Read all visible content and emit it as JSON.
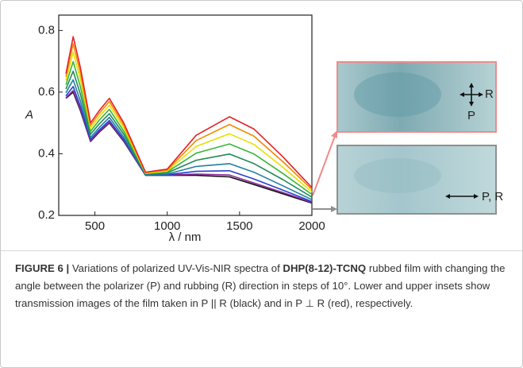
{
  "chart_data": {
    "type": "line",
    "xlabel": "λ / nm",
    "ylabel": "A",
    "x": [
      300,
      350,
      400,
      470,
      530,
      600,
      700,
      850,
      1000,
      1200,
      1430,
      1600,
      1800,
      2000
    ],
    "series": [
      {
        "color": "#111111",
        "values": [
          0.58,
          0.6,
          0.54,
          0.44,
          0.47,
          0.5,
          0.44,
          0.33,
          0.33,
          0.33,
          0.325,
          0.3,
          0.27,
          0.24
        ]
      },
      {
        "color": "#8b2c9a",
        "values": [
          0.582,
          0.605,
          0.544,
          0.442,
          0.472,
          0.502,
          0.442,
          0.33,
          0.331,
          0.334,
          0.331,
          0.305,
          0.274,
          0.242
        ]
      },
      {
        "color": "#2a3fd0",
        "values": [
          0.588,
          0.618,
          0.554,
          0.446,
          0.477,
          0.508,
          0.446,
          0.331,
          0.332,
          0.343,
          0.345,
          0.318,
          0.282,
          0.245
        ]
      },
      {
        "color": "#1f7fa0",
        "values": [
          0.598,
          0.64,
          0.571,
          0.453,
          0.485,
          0.518,
          0.453,
          0.332,
          0.334,
          0.359,
          0.368,
          0.34,
          0.296,
          0.251
        ]
      },
      {
        "color": "#1f8a5a",
        "values": [
          0.61,
          0.668,
          0.593,
          0.463,
          0.497,
          0.53,
          0.463,
          0.334,
          0.338,
          0.379,
          0.399,
          0.368,
          0.316,
          0.259
        ]
      },
      {
        "color": "#3cb43c",
        "values": [
          0.624,
          0.699,
          0.617,
          0.473,
          0.509,
          0.544,
          0.473,
          0.336,
          0.341,
          0.402,
          0.432,
          0.399,
          0.336,
          0.268
        ]
      },
      {
        "color": "#e8e000",
        "values": [
          0.638,
          0.73,
          0.641,
          0.483,
          0.52,
          0.558,
          0.483,
          0.337,
          0.344,
          0.424,
          0.465,
          0.43,
          0.356,
          0.276
        ]
      },
      {
        "color": "#f08c00",
        "values": [
          0.65,
          0.757,
          0.662,
          0.492,
          0.531,
          0.57,
          0.492,
          0.339,
          0.347,
          0.443,
          0.495,
          0.457,
          0.374,
          0.284
        ]
      },
      {
        "color": "#e8202a",
        "values": [
          0.66,
          0.78,
          0.68,
          0.5,
          0.54,
          0.58,
          0.5,
          0.34,
          0.35,
          0.46,
          0.52,
          0.48,
          0.39,
          0.29
        ]
      }
    ],
    "xlim": [
      250,
      2000
    ],
    "xticks": [
      500,
      1000,
      1500,
      2000
    ],
    "ylim": [
      0.2,
      0.85
    ],
    "yticks": [
      0.2,
      0.4,
      0.6,
      0.8
    ]
  },
  "insets": [
    {
      "labels": [
        "R",
        "P"
      ]
    },
    {
      "labels": [
        "P, R"
      ]
    }
  ],
  "caption": [
    "FIGURE 6 |",
    " Variations of polarized UV-Vis-NIR spectra of ",
    "DHP(8-12)-TCNQ",
    " rubbed film with changing the angle between the polarizer (P) and rubbing (R) direction in steps of 10°. Lower and upper insets show transmission images of the film taken in P || R (black) and in P ⊥ R (red), respectively."
  ]
}
